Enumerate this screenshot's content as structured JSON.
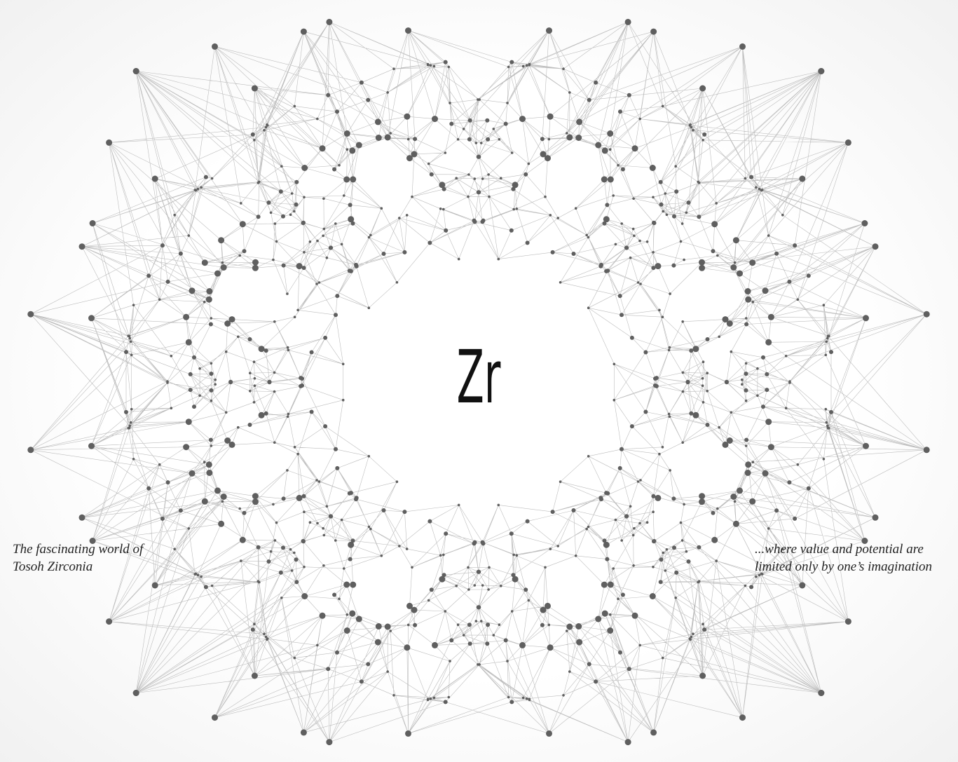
{
  "center_symbol": "Zr",
  "caption_left": {
    "lines": [
      "The fascinating world of",
      "Tosoh Zirconia"
    ]
  },
  "caption_right": {
    "lines": [
      "...where value and potential are",
      "limited only by one’s imagination"
    ]
  }
}
